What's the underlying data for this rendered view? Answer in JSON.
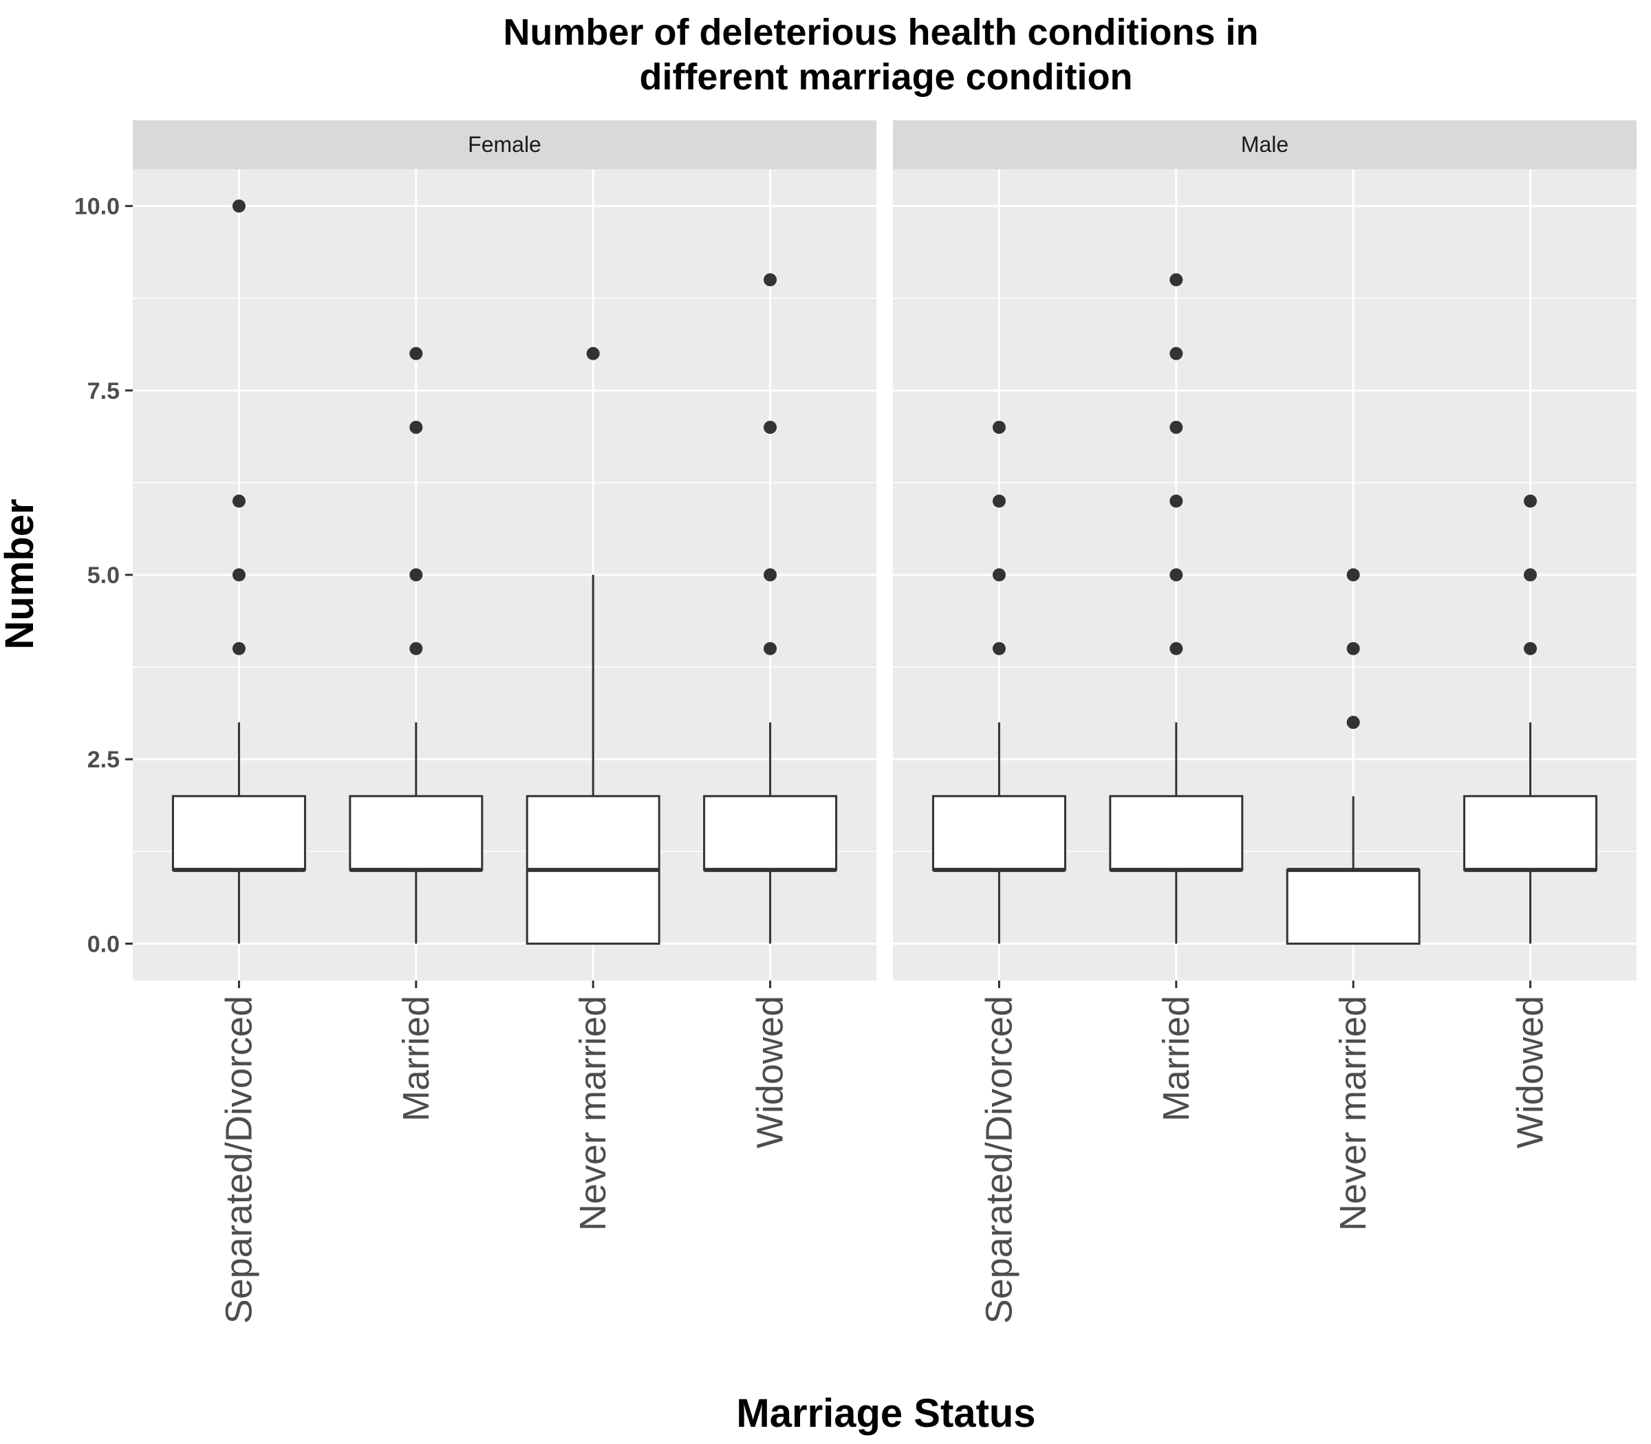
{
  "chart_data": {
    "type": "boxplot",
    "title": "Number of deleterious health conditions in\ndifferent marriage condition",
    "xlabel": "Marriage Status",
    "ylabel": "Number",
    "ylim": [
      -0.5,
      10.5
    ],
    "yticks": [
      0.0,
      2.5,
      5.0,
      7.5,
      10.0
    ],
    "ytick_labels": [
      "0.0",
      "2.5",
      "5.0",
      "7.5",
      "10.0"
    ],
    "grid": true,
    "categories": [
      "Separated/Divorced",
      "Married",
      "Never married",
      "Widowed"
    ],
    "facets": [
      {
        "label": "Female",
        "boxes": [
          {
            "category": "Separated/Divorced",
            "min": 0,
            "q1": 1,
            "median": 1,
            "q3": 2,
            "max": 3,
            "outliers": [
              4,
              5,
              6,
              10
            ]
          },
          {
            "category": "Married",
            "min": 0,
            "q1": 1,
            "median": 1,
            "q3": 2,
            "max": 3,
            "outliers": [
              4,
              5,
              7,
              8
            ]
          },
          {
            "category": "Never married",
            "min": 0,
            "q1": 0,
            "median": 1,
            "q3": 2,
            "max": 5,
            "outliers": [
              8
            ]
          },
          {
            "category": "Widowed",
            "min": 0,
            "q1": 1,
            "median": 1,
            "q3": 2,
            "max": 3,
            "outliers": [
              4,
              5,
              7,
              9
            ]
          }
        ]
      },
      {
        "label": "Male",
        "boxes": [
          {
            "category": "Separated/Divorced",
            "min": 0,
            "q1": 1,
            "median": 1,
            "q3": 2,
            "max": 3,
            "outliers": [
              4,
              5,
              6,
              7
            ]
          },
          {
            "category": "Married",
            "min": 0,
            "q1": 1,
            "median": 1,
            "q3": 2,
            "max": 3,
            "outliers": [
              4,
              5,
              6,
              7,
              8,
              9
            ]
          },
          {
            "category": "Never married",
            "min": 0,
            "q1": 0,
            "median": 1,
            "q3": 1,
            "max": 2,
            "outliers": [
              3,
              4,
              5
            ]
          },
          {
            "category": "Widowed",
            "min": 0,
            "q1": 1,
            "median": 1,
            "q3": 2,
            "max": 3,
            "outliers": [
              4,
              5,
              6
            ]
          }
        ]
      }
    ]
  }
}
